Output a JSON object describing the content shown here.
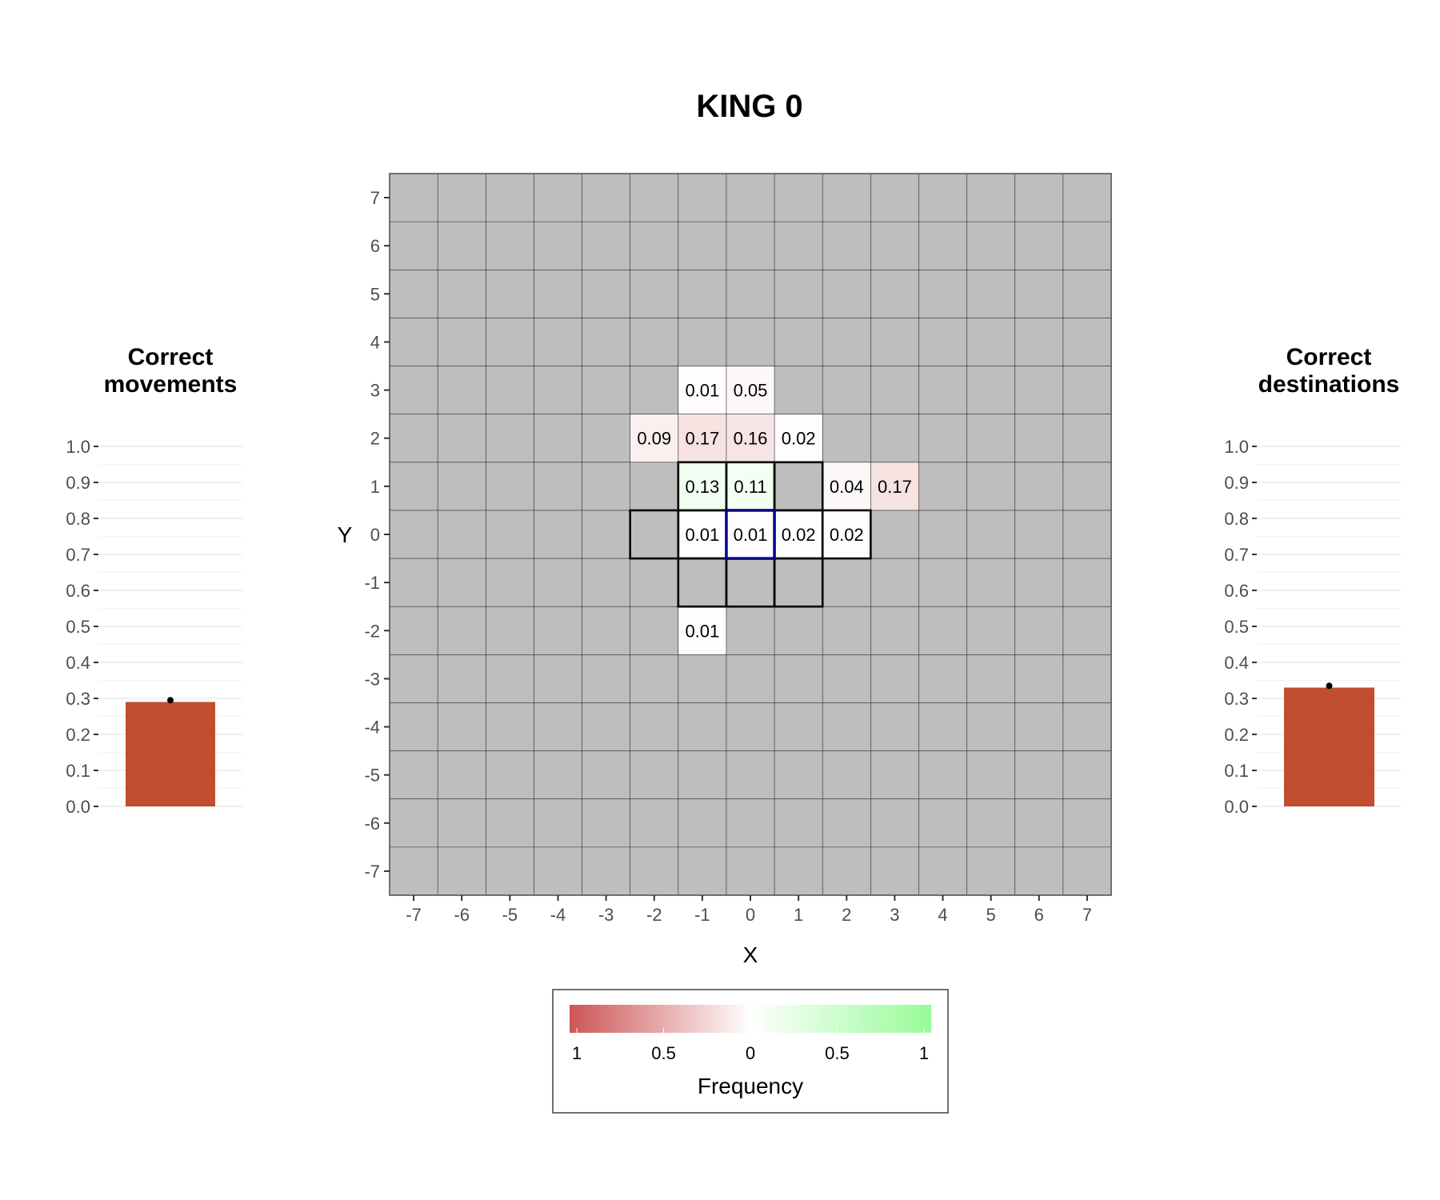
{
  "title": "KING 0",
  "colors": {
    "panel": "#bebebe",
    "negative": "#cd5555",
    "neutral": "#ffffff",
    "positive": "#98fb98",
    "bar": "#bf4d2e",
    "start_outline": "#00008b",
    "valid_outline": "#000000"
  },
  "chart_data": [
    {
      "type": "bar",
      "title": "Correct\nmovements",
      "values": [
        0.29
      ],
      "ylim": [
        0,
        1
      ],
      "yticks": [
        0.0,
        0.1,
        0.2,
        0.3,
        0.4,
        0.5,
        0.6,
        0.7,
        0.8,
        0.9,
        1.0
      ],
      "ytick_labels": [
        "0.0",
        "0.1",
        "0.2",
        "0.3",
        "0.4",
        "0.5",
        "0.6",
        "0.7",
        "0.8",
        "0.9",
        "1.0"
      ],
      "grid": true,
      "error_point": 0.295
    },
    {
      "type": "heatmap",
      "title": "KING 0",
      "xlabel": "X",
      "ylabel": "Y",
      "xlim": [
        -7,
        7
      ],
      "ylim": [
        -7,
        7
      ],
      "xticks": [
        -7,
        -6,
        -5,
        -4,
        -3,
        -2,
        -1,
        0,
        1,
        2,
        3,
        4,
        5,
        6,
        7
      ],
      "yticks": [
        -7,
        -6,
        -5,
        -4,
        -3,
        -2,
        -1,
        0,
        1,
        2,
        3,
        4,
        5,
        6,
        7
      ],
      "start_cell": [
        0,
        0
      ],
      "valid_moves": [
        [
          -1,
          1
        ],
        [
          0,
          1
        ],
        [
          1,
          1
        ],
        [
          -2,
          0
        ],
        [
          -1,
          0
        ],
        [
          0,
          0
        ],
        [
          1,
          0
        ],
        [
          2,
          0
        ],
        [
          -1,
          -1
        ],
        [
          0,
          -1
        ],
        [
          1,
          -1
        ]
      ],
      "cells": [
        {
          "x": -1,
          "y": 3,
          "value": -0.01,
          "label": "0.01"
        },
        {
          "x": 0,
          "y": 3,
          "value": -0.05,
          "label": "0.05"
        },
        {
          "x": -2,
          "y": 2,
          "value": -0.09,
          "label": "0.09"
        },
        {
          "x": -1,
          "y": 2,
          "value": -0.17,
          "label": "0.17"
        },
        {
          "x": 0,
          "y": 2,
          "value": -0.16,
          "label": "0.16"
        },
        {
          "x": 1,
          "y": 2,
          "value": -0.02,
          "label": "0.02"
        },
        {
          "x": -1,
          "y": 1,
          "value": 0.13,
          "label": "0.13"
        },
        {
          "x": 0,
          "y": 1,
          "value": 0.11,
          "label": "0.11"
        },
        {
          "x": 2,
          "y": 1,
          "value": -0.04,
          "label": "0.04"
        },
        {
          "x": 3,
          "y": 1,
          "value": -0.17,
          "label": "0.17"
        },
        {
          "x": -1,
          "y": 0,
          "value": 0.01,
          "label": "0.01"
        },
        {
          "x": 0,
          "y": 0,
          "value": -0.01,
          "label": "0.01"
        },
        {
          "x": 1,
          "y": 0,
          "value": 0.02,
          "label": "0.02"
        },
        {
          "x": 2,
          "y": 0,
          "value": 0.02,
          "label": "0.02"
        },
        {
          "x": -1,
          "y": -2,
          "value": -0.01,
          "label": "0.01"
        }
      ],
      "legend": {
        "title": "Frequency",
        "tick_labels": [
          "1",
          "0.5",
          "0",
          "0.5",
          "1"
        ],
        "range": [
          -1,
          1
        ],
        "placement": "bottom"
      }
    },
    {
      "type": "bar",
      "title": "Correct\ndestinations",
      "values": [
        0.33
      ],
      "ylim": [
        0,
        1
      ],
      "yticks": [
        0.0,
        0.1,
        0.2,
        0.3,
        0.4,
        0.5,
        0.6,
        0.7,
        0.8,
        0.9,
        1.0
      ],
      "ytick_labels": [
        "0.0",
        "0.1",
        "0.2",
        "0.3",
        "0.4",
        "0.5",
        "0.6",
        "0.7",
        "0.8",
        "0.9",
        "1.0"
      ],
      "grid": true,
      "error_point": 0.335
    }
  ]
}
